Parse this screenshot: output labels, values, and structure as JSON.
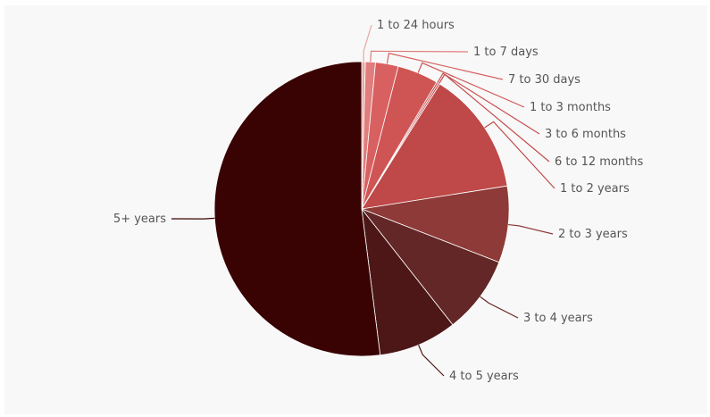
{
  "chart_data": {
    "type": "pie",
    "title": "",
    "start_angle_deg": 0,
    "direction": "clockwise",
    "slices": [
      {
        "label": "1 to 24 hours",
        "value": 0.4,
        "color": "#e8a8a8"
      },
      {
        "label": "1 to 7 days",
        "value": 1.1,
        "color": "#e07d7d"
      },
      {
        "label": "7 to 30 days",
        "value": 2.5,
        "color": "#d86060"
      },
      {
        "label": "1 to 3 months",
        "value": 4.5,
        "color": "#cf5555"
      },
      {
        "label": "3 to 6 months",
        "value": 0.2,
        "color": "#c84f4f"
      },
      {
        "label": "6 to 12 months",
        "value": 0.2,
        "color": "#c44b4b"
      },
      {
        "label": "1 to 2 years",
        "value": 13.6,
        "color": "#bf4848"
      },
      {
        "label": "2 to 3 years",
        "value": 8.4,
        "color": "#8e3a38"
      },
      {
        "label": "3 to 4 years",
        "value": 8.5,
        "color": "#622726"
      },
      {
        "label": "4 to 5 years",
        "value": 8.6,
        "color": "#4c1716"
      },
      {
        "label": "5+ years",
        "value": 52.0,
        "color": "#3a0303"
      }
    ]
  }
}
